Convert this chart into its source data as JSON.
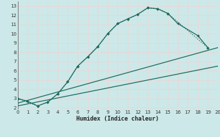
{
  "xlabel": "Humidex (Indice chaleur)",
  "background_color": "#cce8e8",
  "grid_color": "#e8d8d8",
  "line_color": "#1e6b5e",
  "xlim": [
    0,
    20
  ],
  "ylim": [
    1.8,
    13.5
  ],
  "xticks": [
    0,
    1,
    2,
    3,
    4,
    5,
    6,
    7,
    8,
    9,
    10,
    11,
    12,
    13,
    14,
    15,
    16,
    17,
    18,
    19,
    20
  ],
  "yticks": [
    2,
    3,
    4,
    5,
    6,
    7,
    8,
    9,
    10,
    11,
    12,
    13
  ],
  "curve1_x": [
    0,
    1,
    2,
    3,
    4,
    5,
    6,
    7,
    8,
    9,
    10,
    11,
    12,
    13,
    14,
    15,
    16,
    18,
    19
  ],
  "curve1_y": [
    3.0,
    2.7,
    2.2,
    2.6,
    3.5,
    4.8,
    6.5,
    7.5,
    8.6,
    10.0,
    11.1,
    11.6,
    12.1,
    12.8,
    12.7,
    12.2,
    11.1,
    9.8,
    8.5
  ],
  "curve2_x": [
    0,
    2,
    3,
    4,
    5,
    6,
    7,
    8,
    9,
    10,
    11,
    12,
    13,
    14,
    15,
    19
  ],
  "curve2_y": [
    3.0,
    2.2,
    2.6,
    3.5,
    4.8,
    6.5,
    7.5,
    8.6,
    10.0,
    11.1,
    11.6,
    12.1,
    12.8,
    12.7,
    12.2,
    8.5
  ],
  "curve3_x": [
    0,
    20
  ],
  "curve3_y": [
    2.2,
    6.5
  ],
  "curve4_x": [
    0,
    20
  ],
  "curve4_y": [
    2.5,
    8.5
  ]
}
